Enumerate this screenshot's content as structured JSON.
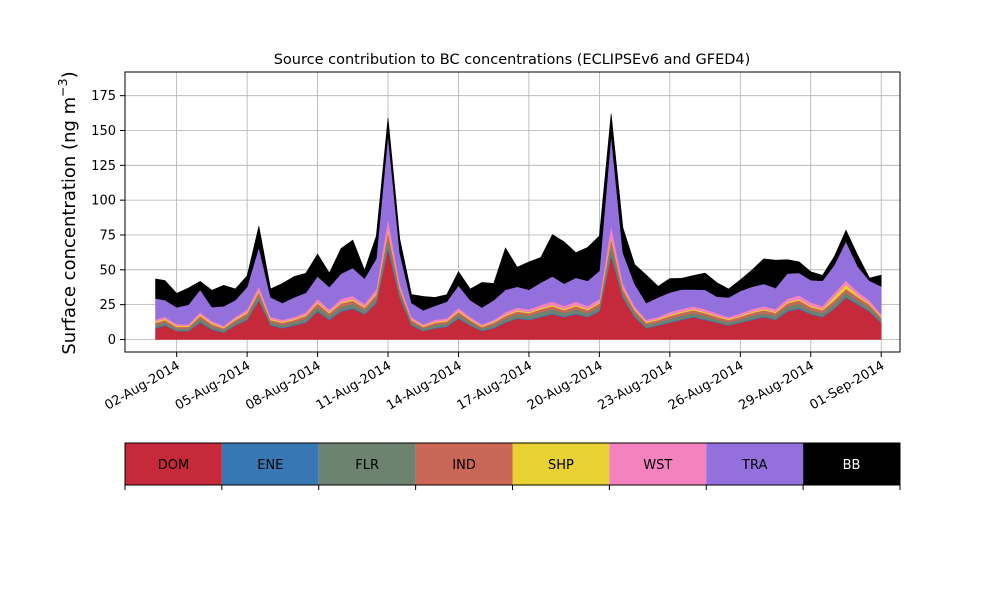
{
  "chart_data": {
    "type": "area",
    "stacked": true,
    "title": "Source contribution to BC concentrations (ECLIPSEv6 and GFED4)",
    "ylabel_base": "Surface concentration (ng m",
    "ylabel_sup": "−3",
    "ylabel_close": ")",
    "xlabel": "",
    "ylim": [
      -9,
      192
    ],
    "xlim": [
      -1.2,
      31.8
    ],
    "grid": true,
    "yticks": [
      0,
      25,
      50,
      75,
      100,
      125,
      150,
      175
    ],
    "xticks": [
      {
        "x": 1,
        "label": "02-Aug-2014"
      },
      {
        "x": 4,
        "label": "05-Aug-2014"
      },
      {
        "x": 7,
        "label": "08-Aug-2014"
      },
      {
        "x": 10,
        "label": "11-Aug-2014"
      },
      {
        "x": 13,
        "label": "14-Aug-2014"
      },
      {
        "x": 16,
        "label": "17-Aug-2014"
      },
      {
        "x": 19,
        "label": "20-Aug-2014"
      },
      {
        "x": 22,
        "label": "23-Aug-2014"
      },
      {
        "x": 25,
        "label": "26-Aug-2014"
      },
      {
        "x": 28,
        "label": "29-Aug-2014"
      },
      {
        "x": 31,
        "label": "01-Sep-2014"
      }
    ],
    "x": [
      0.1,
      0.5,
      1,
      1.5,
      2,
      2.5,
      3,
      3.5,
      4,
      4.5,
      5,
      5.5,
      6,
      6.5,
      7,
      7.5,
      8,
      8.5,
      9,
      9.5,
      10,
      10.5,
      11,
      11.5,
      12,
      12.5,
      13,
      13.5,
      14,
      14.5,
      15,
      15.5,
      16,
      16.5,
      17,
      17.5,
      18,
      18.5,
      19,
      19.5,
      20,
      20.5,
      21,
      21.5,
      22,
      22.5,
      23,
      23.5,
      24,
      24.5,
      25,
      25.5,
      26,
      26.5,
      27,
      27.5,
      28,
      28.5,
      29,
      29.5,
      30,
      30.5,
      31
    ],
    "series": [
      {
        "name": "DOM",
        "color": "#c62a3a",
        "values": [
          8,
          10,
          6,
          6,
          12,
          7,
          5,
          10,
          14,
          28,
          10,
          8,
          10,
          12,
          20,
          14,
          20,
          22,
          18,
          26,
          65,
          30,
          10,
          6,
          8,
          9,
          15,
          10,
          6,
          8,
          12,
          15,
          14,
          16,
          18,
          16,
          18,
          16,
          20,
          60,
          30,
          16,
          8,
          10,
          12,
          14,
          16,
          14,
          12,
          10,
          12,
          14,
          16,
          14,
          20,
          22,
          18,
          16,
          22,
          30,
          25,
          20,
          12
        ]
      },
      {
        "name": "ENE",
        "color": "#3677b4",
        "values": [
          0.5,
          0.5,
          0.4,
          0.4,
          0.6,
          0.5,
          0.4,
          0.5,
          0.6,
          0.8,
          0.5,
          0.5,
          0.5,
          0.6,
          0.7,
          0.6,
          0.7,
          0.7,
          0.6,
          0.8,
          1.5,
          0.8,
          0.5,
          0.4,
          0.5,
          0.5,
          0.6,
          0.5,
          0.4,
          0.5,
          0.6,
          0.6,
          0.6,
          0.7,
          0.7,
          0.6,
          0.7,
          0.6,
          0.7,
          1.5,
          0.8,
          0.6,
          0.5,
          0.5,
          0.6,
          0.6,
          0.6,
          0.6,
          0.5,
          0.5,
          0.5,
          0.6,
          0.6,
          0.6,
          0.7,
          0.7,
          0.6,
          0.6,
          0.7,
          0.8,
          0.7,
          0.6,
          0.5
        ]
      },
      {
        "name": "FLR",
        "color": "#6e8270",
        "values": [
          2,
          2,
          1.5,
          1.5,
          2.5,
          2,
          1.5,
          2,
          2.5,
          3,
          2,
          2,
          2,
          2.5,
          3,
          2.5,
          3,
          3,
          2.5,
          3,
          6,
          3,
          2,
          1.5,
          2,
          2,
          2.5,
          2,
          1.5,
          2,
          2.5,
          2.5,
          2.5,
          3,
          3,
          2.5,
          3,
          2.5,
          3,
          6,
          3,
          2.5,
          2,
          2,
          2.5,
          2.5,
          2.5,
          2.5,
          2,
          2,
          2,
          2.5,
          2.5,
          2.5,
          3,
          3,
          2.5,
          2.5,
          3,
          3,
          2.5,
          2.5,
          2
        ]
      },
      {
        "name": "IND",
        "color": "#c96655",
        "values": [
          1.5,
          1.5,
          1.2,
          1.2,
          1.8,
          1.5,
          1.2,
          1.5,
          1.8,
          2.5,
          1.5,
          1.5,
          1.5,
          1.8,
          2.2,
          1.8,
          2.2,
          2.2,
          1.8,
          2.4,
          5,
          2.4,
          1.5,
          1.2,
          1.5,
          1.5,
          1.8,
          1.5,
          1.2,
          1.5,
          1.8,
          2,
          1.8,
          2,
          2.2,
          2,
          2.2,
          2,
          2.2,
          5,
          2.5,
          2,
          1.5,
          1.5,
          1.8,
          2,
          2,
          1.8,
          1.8,
          1.5,
          1.8,
          2,
          2,
          2,
          2.2,
          2.4,
          2.2,
          2,
          2.4,
          2.6,
          2.4,
          2,
          1.5
        ]
      },
      {
        "name": "SHP",
        "color": "#e8d132",
        "values": [
          1,
          0.8,
          0.8,
          0.6,
          1,
          0.8,
          0.6,
          0.8,
          0.8,
          1,
          0.8,
          0.7,
          0.7,
          0.8,
          0.9,
          0.8,
          0.9,
          0.9,
          0.8,
          1,
          1.5,
          1,
          0.7,
          0.6,
          0.7,
          0.7,
          0.8,
          0.7,
          0.6,
          0.7,
          0.8,
          0.8,
          0.8,
          0.9,
          0.9,
          0.8,
          0.9,
          0.8,
          0.9,
          1.5,
          1,
          0.8,
          0.7,
          0.7,
          0.8,
          0.8,
          0.8,
          0.8,
          0.7,
          0.7,
          0.7,
          0.8,
          0.8,
          0.8,
          0.9,
          0.9,
          0.8,
          0.8,
          2.5,
          3,
          1,
          0.8,
          0.7
        ]
      },
      {
        "name": "WST",
        "color": "#f382bf",
        "values": [
          1.5,
          1.5,
          1.2,
          1.2,
          1.8,
          1.5,
          1.2,
          1.5,
          2,
          3,
          1.5,
          1.5,
          1.5,
          1.8,
          2.5,
          2,
          2.5,
          2.5,
          2,
          3,
          8,
          3,
          1.5,
          1.2,
          1.5,
          1.5,
          2,
          1.5,
          1.2,
          1.5,
          2,
          2,
          2,
          2.2,
          2.5,
          2.2,
          2.5,
          2.2,
          2.5,
          8,
          3,
          2,
          1.5,
          1.5,
          2,
          2,
          2,
          2,
          1.8,
          1.5,
          1.8,
          2,
          2,
          2,
          2.5,
          2.8,
          2.5,
          2.2,
          2.8,
          3,
          2.8,
          2.2,
          1.5
        ]
      },
      {
        "name": "TRA",
        "color": "#9370dc",
        "values": [
          15,
          12,
          12,
          14,
          16,
          10,
          14,
          12,
          16,
          28,
          14,
          12,
          14,
          14,
          16,
          16,
          18,
          20,
          18,
          22,
          60,
          22,
          10,
          10,
          10,
          12,
          16,
          12,
          12,
          14,
          16,
          15,
          14,
          16,
          18,
          16,
          17,
          18,
          20,
          65,
          22,
          16,
          12,
          14,
          14,
          14,
          12,
          14,
          12,
          14,
          16,
          16,
          16,
          15,
          18,
          16,
          16,
          18,
          20,
          28,
          18,
          14,
          20
        ]
      },
      {
        "name": "BB",
        "color": "#000000",
        "values": [
          14,
          14,
          10,
          12,
          6,
          12,
          15,
          8,
          8,
          15,
          6,
          14,
          15,
          14,
          16,
          10,
          18,
          20,
          6,
          16,
          12,
          10,
          6,
          10,
          6,
          5,
          10,
          8,
          18,
          12,
          30,
          14,
          20,
          18,
          30,
          30,
          18,
          24,
          25,
          15,
          18,
          14,
          20,
          8,
          10,
          8,
          10,
          12,
          10,
          6,
          8,
          12,
          18,
          20,
          10,
          8,
          6,
          4,
          6,
          8,
          8,
          2,
          8
        ]
      }
    ],
    "legend": {
      "placement": "below",
      "items": [
        {
          "label": "DOM",
          "color": "#c62a3a"
        },
        {
          "label": "ENE",
          "color": "#3677b4"
        },
        {
          "label": "FLR",
          "color": "#6e8270"
        },
        {
          "label": "IND",
          "color": "#c96655"
        },
        {
          "label": "SHP",
          "color": "#e8d132"
        },
        {
          "label": "WST",
          "color": "#f382bf"
        },
        {
          "label": "TRA",
          "color": "#9370dc"
        },
        {
          "label": "BB",
          "color": "#000000"
        }
      ]
    }
  }
}
